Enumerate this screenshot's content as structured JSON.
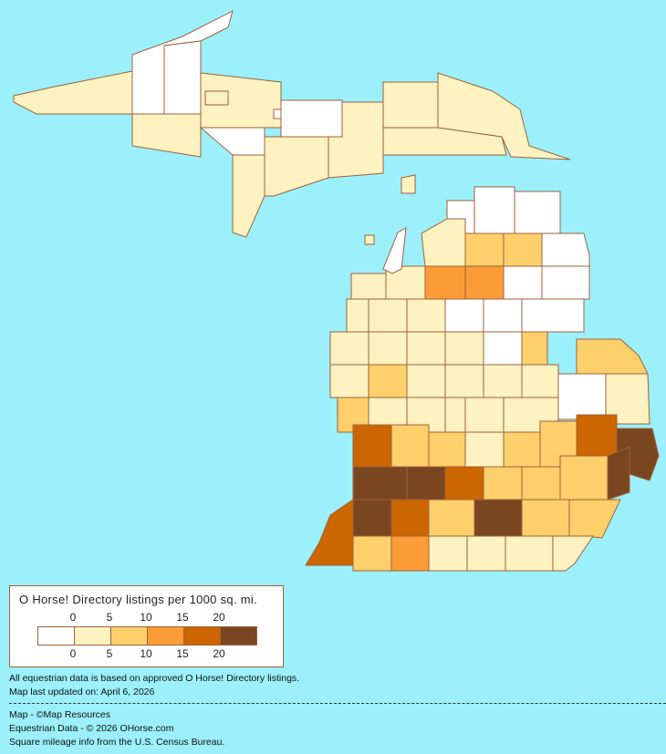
{
  "colors": {
    "background": "#9bf0fb",
    "border": "#a0603a",
    "bins": [
      "#ffffff",
      "#fdf2c0",
      "#fdd06b",
      "#fb9c37",
      "#cc6600",
      "#7a4620"
    ]
  },
  "legend": {
    "title": "O Horse! Directory listings per 1000 sq. mi.",
    "ticks": [
      "0",
      "5",
      "10",
      "15",
      "20"
    ]
  },
  "notes": {
    "line1": "All equestrian data is based on approved O Horse! Directory listings.",
    "line2": "Map last updated on: April 6, 2026",
    "credit1": "Map - ©Map Resources",
    "credit2": "Equestrian Data - © 2026 OHorse.com",
    "credit3": "Square mileage info from the U.S. Census Bureau."
  },
  "county_bins": [
    1,
    0,
    0,
    1,
    1,
    0,
    1,
    1,
    0,
    1,
    1,
    1,
    1,
    1,
    1,
    0,
    0,
    0,
    0,
    1,
    2,
    2,
    0,
    1,
    1,
    3,
    3,
    0,
    0,
    1,
    1,
    1,
    0,
    0,
    0,
    0,
    1,
    1,
    1,
    1,
    1,
    0,
    2,
    2,
    1,
    2,
    1,
    1,
    1,
    1,
    0,
    1,
    2,
    1,
    1,
    1,
    1,
    1,
    4,
    2,
    2,
    1,
    2,
    2,
    4,
    5,
    2,
    2,
    2,
    5,
    5,
    5,
    4,
    2,
    2,
    5,
    2,
    4,
    5,
    4,
    2,
    3,
    1,
    1,
    1,
    1,
    5
  ]
}
